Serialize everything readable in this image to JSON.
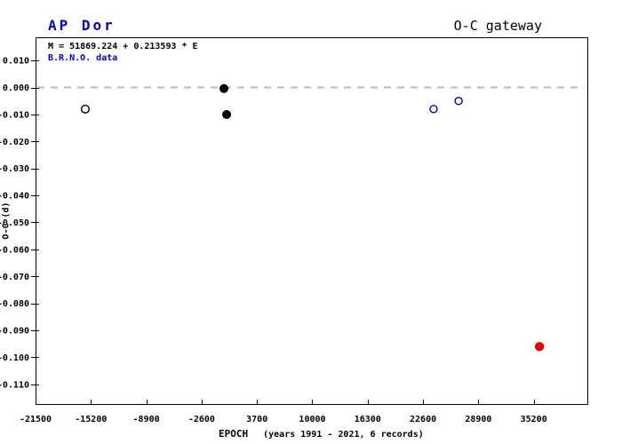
{
  "header": {
    "star_name": "AP Dor",
    "site_title": "O-C gateway"
  },
  "annotations": {
    "ephemeris": "M = 51869.224 + 0.213593 * E",
    "dataset": "B.R.N.O. data"
  },
  "axes": {
    "x_label": "EPOCH",
    "x_note": "(years 1991 - 2021, 6 records)",
    "y_label": "O-C (d)"
  },
  "colors": {
    "accent_blue": "#0000cc",
    "point_black": "#000000",
    "point_blue": "#0000cc",
    "point_red": "#ee0000",
    "zero_line_gray": "#bbbbbb",
    "axis_black": "#000000"
  },
  "chart_data": {
    "type": "scatter",
    "title": "AP Dor",
    "xlabel": "EPOCH (years 1991 - 2021, 6 records)",
    "ylabel": "O-C (d)",
    "xlim": [
      -21500,
      41300
    ],
    "ylim": [
      -0.1173,
      0.0186
    ],
    "x_ticks": [
      -21500,
      -15200,
      -8900,
      -2600,
      3700,
      10000,
      16300,
      22600,
      28900,
      35200
    ],
    "y_ticks": [
      0.01,
      0.0,
      -0.01,
      -0.02,
      -0.03,
      -0.04,
      -0.05,
      -0.06,
      -0.07,
      -0.08,
      -0.09,
      -0.1,
      -0.11
    ],
    "zero_line_y": 0,
    "grid": false,
    "legend": "none",
    "series": [
      {
        "name": "open-black",
        "marker": "open",
        "color": "#000000",
        "points": [
          {
            "x": -15840,
            "y": -0.008
          }
        ]
      },
      {
        "name": "filled-black",
        "marker": "filled",
        "color": "#000000",
        "points": [
          {
            "x": -60,
            "y": -0.0004
          },
          {
            "x": 250,
            "y": -0.01
          }
        ]
      },
      {
        "name": "open-blue",
        "marker": "open",
        "color": "#0000cc",
        "points": [
          {
            "x": 23800,
            "y": -0.008
          },
          {
            "x": 26650,
            "y": -0.005
          }
        ]
      },
      {
        "name": "filled-red",
        "marker": "filled",
        "color": "#ee0000",
        "points": [
          {
            "x": 35850,
            "y": -0.096
          }
        ]
      }
    ]
  }
}
